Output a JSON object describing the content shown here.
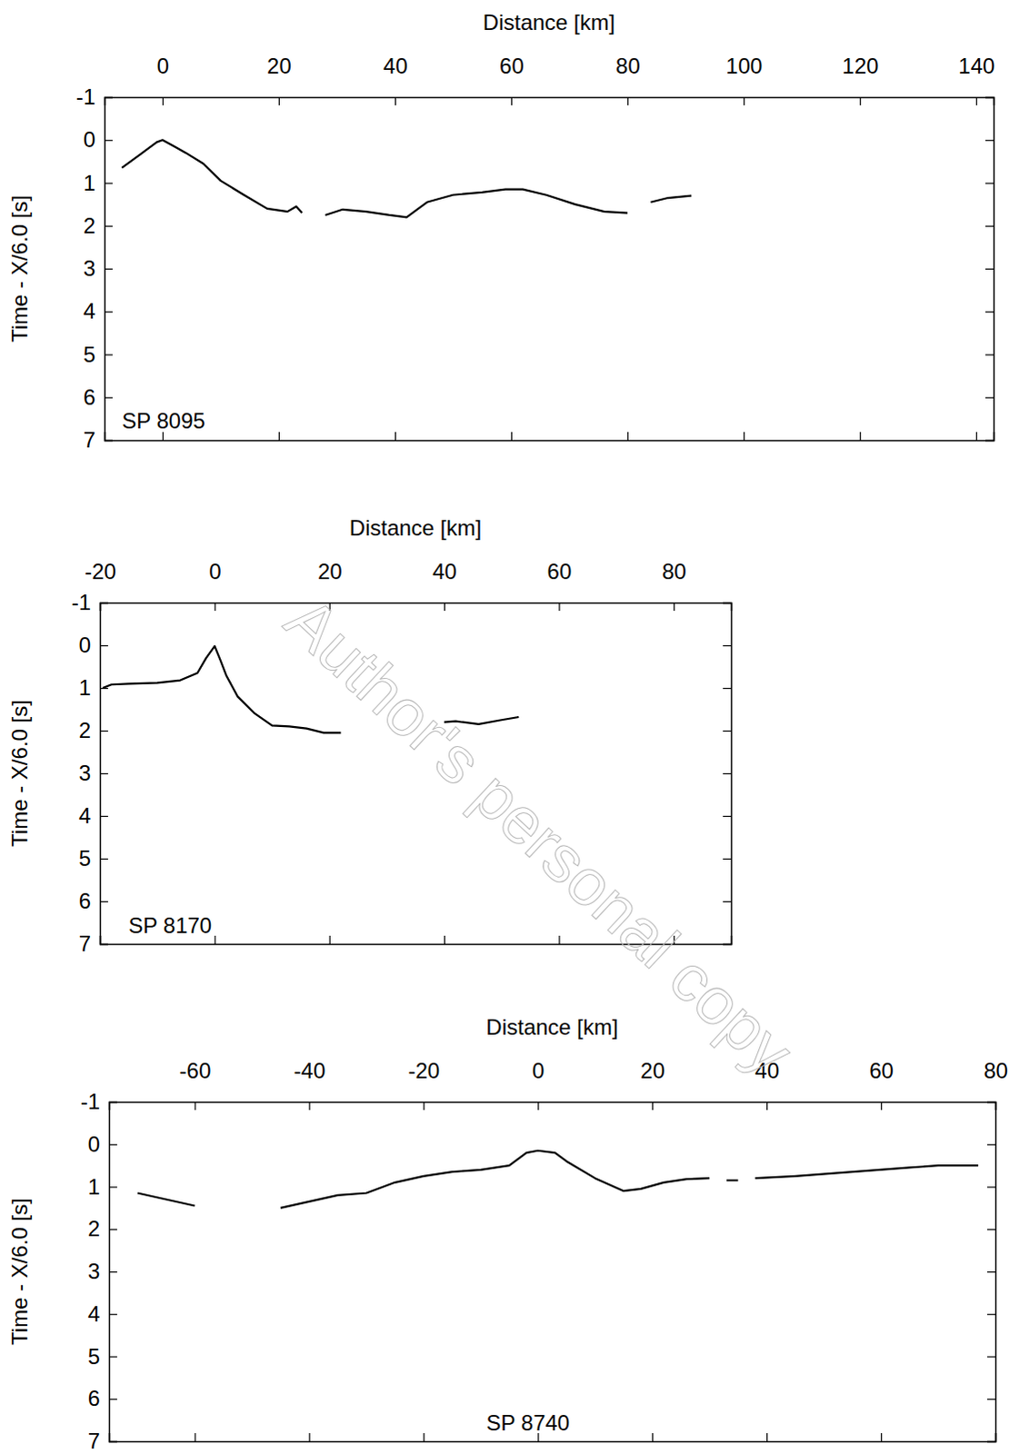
{
  "watermark": "Author's personal copy",
  "chart_data": [
    {
      "type": "line",
      "x_label": "Distance [km]",
      "y_label": "Time - X/6.0 [s]",
      "xlim": [
        -10,
        143
      ],
      "ylim": [
        -1,
        7
      ],
      "xticks": [
        0,
        20,
        40,
        60,
        80,
        100,
        120,
        140
      ],
      "yticks": [
        -1,
        0,
        1,
        2,
        3,
        4,
        5,
        6,
        7
      ],
      "color": "#000000",
      "annotations": [
        {
          "text": "SP 8095",
          "x": -7,
          "y": 6.6
        }
      ],
      "x": [
        -7,
        -4,
        -1,
        0,
        2,
        4,
        7,
        10,
        14,
        18,
        21.5,
        23,
        24,
        26,
        28,
        31,
        35,
        39,
        42,
        45.5,
        50,
        55,
        59,
        62,
        66,
        71,
        76,
        80,
        82,
        84,
        87,
        91
      ],
      "values": [
        0.65,
        0.35,
        0.05,
        0.0,
        0.15,
        0.3,
        0.55,
        0.95,
        1.28,
        1.6,
        1.67,
        1.55,
        1.7,
        null,
        1.75,
        1.62,
        1.67,
        1.75,
        1.8,
        1.45,
        1.28,
        1.22,
        1.15,
        1.15,
        1.28,
        1.5,
        1.67,
        1.7,
        null,
        1.45,
        1.35,
        1.3
      ]
    },
    {
      "type": "line",
      "x_label": "Distance [km]",
      "y_label": "Time - X/6.0 [s]",
      "xlim": [
        -20,
        90
      ],
      "ylim": [
        -1,
        7
      ],
      "xticks": [
        -20,
        0,
        20,
        40,
        60,
        80
      ],
      "yticks": [
        -1,
        0,
        1,
        2,
        3,
        4,
        5,
        6,
        7
      ],
      "color": "#000000",
      "annotations": [
        {
          "text": "SP 8170",
          "x": -15,
          "y": 6.6
        }
      ],
      "x": [
        -19.5,
        -18,
        -15,
        -10,
        -6,
        -3,
        -1.5,
        0,
        1,
        2,
        4,
        7,
        10,
        13,
        16,
        19,
        22,
        30,
        40,
        42,
        46,
        50,
        53
      ],
      "values": [
        1.0,
        0.92,
        0.9,
        0.88,
        0.82,
        0.65,
        0.3,
        0.02,
        0.35,
        0.7,
        1.2,
        1.6,
        1.88,
        1.9,
        1.95,
        2.05,
        2.05,
        null,
        1.8,
        1.78,
        1.85,
        1.75,
        1.68
      ]
    },
    {
      "type": "line",
      "x_label": "Distance [km]",
      "y_label": "Time - X/6.0 [s]",
      "xlim": [
        -75,
        80
      ],
      "ylim": [
        -1,
        7
      ],
      "xticks": [
        -60,
        -40,
        -20,
        0,
        20,
        40,
        60,
        80
      ],
      "yticks": [
        -1,
        0,
        1,
        2,
        3,
        4,
        5,
        6,
        7
      ],
      "color": "#000000",
      "annotations": [
        {
          "text": "SP 8740",
          "x": -9,
          "y": 6.6
        }
      ],
      "x": [
        -70,
        -60,
        -52,
        -45,
        -40,
        -35,
        -30,
        -25,
        -20,
        -15,
        -10,
        -5,
        -2,
        0,
        3,
        5,
        10,
        15,
        18,
        22,
        26,
        30,
        31,
        33,
        35,
        36,
        38,
        45,
        55,
        65,
        70,
        77
      ],
      "values": [
        1.15,
        1.45,
        null,
        1.5,
        1.35,
        1.2,
        1.15,
        0.9,
        0.75,
        0.65,
        0.6,
        0.5,
        0.2,
        0.15,
        0.2,
        0.4,
        0.8,
        1.1,
        1.05,
        0.9,
        0.82,
        0.8,
        null,
        0.85,
        0.85,
        null,
        0.8,
        0.75,
        0.65,
        0.55,
        0.5,
        0.5
      ]
    }
  ]
}
